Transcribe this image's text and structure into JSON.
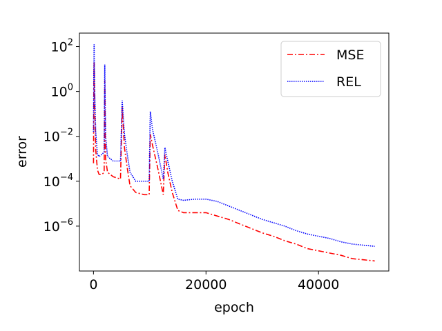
{
  "chart_data": {
    "type": "line",
    "xlabel": "epoch",
    "ylabel": "error",
    "xlim": [
      -2500,
      52500
    ],
    "ylim_log10": [
      -8.0,
      2.6
    ],
    "yscale": "log",
    "x_ticks": [
      0,
      20000,
      40000
    ],
    "x_tick_labels": [
      "0",
      "20000",
      "40000"
    ],
    "y_ticks_log10": [
      2,
      0,
      -2,
      -4,
      -6
    ],
    "y_tick_labels": [
      {
        "base": "10",
        "exp": "2"
      },
      {
        "base": "10",
        "exp": "0"
      },
      {
        "base": "10",
        "exp": "−2"
      },
      {
        "base": "10",
        "exp": "−4"
      },
      {
        "base": "10",
        "exp": "−6"
      }
    ],
    "grid": false,
    "legend_position": "top-right",
    "series": [
      {
        "name": "MSE",
        "color": "#ff0000",
        "style": "dashdot",
        "points_log10": [
          [
            0,
            -3.2
          ],
          [
            60,
            0.2
          ],
          [
            120,
            1.3
          ],
          [
            200,
            -0.5
          ],
          [
            400,
            -2.6
          ],
          [
            700,
            -3.5
          ],
          [
            1000,
            -3.7
          ],
          [
            1500,
            -3.7
          ],
          [
            1900,
            -3.6
          ],
          [
            2000,
            0.5
          ],
          [
            2150,
            -3.0
          ],
          [
            2500,
            -3.6
          ],
          [
            3500,
            -3.8
          ],
          [
            4800,
            -3.9
          ],
          [
            5100,
            -0.7
          ],
          [
            5500,
            -2.5
          ],
          [
            6000,
            -3.4
          ],
          [
            6500,
            -4.2
          ],
          [
            7500,
            -4.5
          ],
          [
            9000,
            -4.6
          ],
          [
            9900,
            -4.6
          ],
          [
            10100,
            -1.9
          ],
          [
            10500,
            -2.4
          ],
          [
            11500,
            -3.5
          ],
          [
            12400,
            -4.6
          ],
          [
            12700,
            -2.8
          ],
          [
            13200,
            -3.6
          ],
          [
            14000,
            -4.5
          ],
          [
            15000,
            -5.3
          ],
          [
            16000,
            -5.4
          ],
          [
            18000,
            -5.4
          ],
          [
            20000,
            -5.4
          ],
          [
            22000,
            -5.55
          ],
          [
            24000,
            -5.7
          ],
          [
            26000,
            -5.9
          ],
          [
            28000,
            -6.1
          ],
          [
            30000,
            -6.3
          ],
          [
            32000,
            -6.45
          ],
          [
            34000,
            -6.65
          ],
          [
            36000,
            -6.8
          ],
          [
            38000,
            -7.0
          ],
          [
            40000,
            -7.1
          ],
          [
            42000,
            -7.2
          ],
          [
            44000,
            -7.3
          ],
          [
            46000,
            -7.45
          ],
          [
            48000,
            -7.5
          ],
          [
            50000,
            -7.55
          ]
        ]
      },
      {
        "name": "REL",
        "color": "#0000ff",
        "style": "dotted",
        "points_log10": [
          [
            0,
            -1.8
          ],
          [
            60,
            1.1
          ],
          [
            120,
            2.1
          ],
          [
            200,
            0.2
          ],
          [
            400,
            -1.8
          ],
          [
            700,
            -2.8
          ],
          [
            1000,
            -2.9
          ],
          [
            1500,
            -2.8
          ],
          [
            1900,
            -2.7
          ],
          [
            2000,
            1.2
          ],
          [
            2150,
            -2.0
          ],
          [
            2500,
            -2.9
          ],
          [
            3500,
            -3.1
          ],
          [
            4800,
            -3.1
          ],
          [
            5100,
            -0.4
          ],
          [
            5500,
            -1.9
          ],
          [
            6000,
            -2.8
          ],
          [
            6500,
            -3.6
          ],
          [
            7500,
            -4.0
          ],
          [
            9000,
            -4.0
          ],
          [
            9900,
            -4.0
          ],
          [
            10100,
            -0.9
          ],
          [
            10500,
            -1.7
          ],
          [
            11500,
            -2.8
          ],
          [
            12400,
            -3.9
          ],
          [
            12700,
            -2.5
          ],
          [
            13200,
            -3.1
          ],
          [
            14000,
            -4.0
          ],
          [
            15000,
            -4.8
          ],
          [
            16000,
            -4.85
          ],
          [
            18000,
            -4.8
          ],
          [
            20000,
            -4.8
          ],
          [
            22000,
            -4.9
          ],
          [
            24000,
            -5.1
          ],
          [
            26000,
            -5.3
          ],
          [
            28000,
            -5.5
          ],
          [
            30000,
            -5.7
          ],
          [
            32000,
            -5.85
          ],
          [
            34000,
            -6.0
          ],
          [
            36000,
            -6.2
          ],
          [
            38000,
            -6.35
          ],
          [
            40000,
            -6.45
          ],
          [
            42000,
            -6.55
          ],
          [
            44000,
            -6.7
          ],
          [
            46000,
            -6.8
          ],
          [
            48000,
            -6.85
          ],
          [
            50000,
            -6.9
          ]
        ]
      }
    ]
  }
}
